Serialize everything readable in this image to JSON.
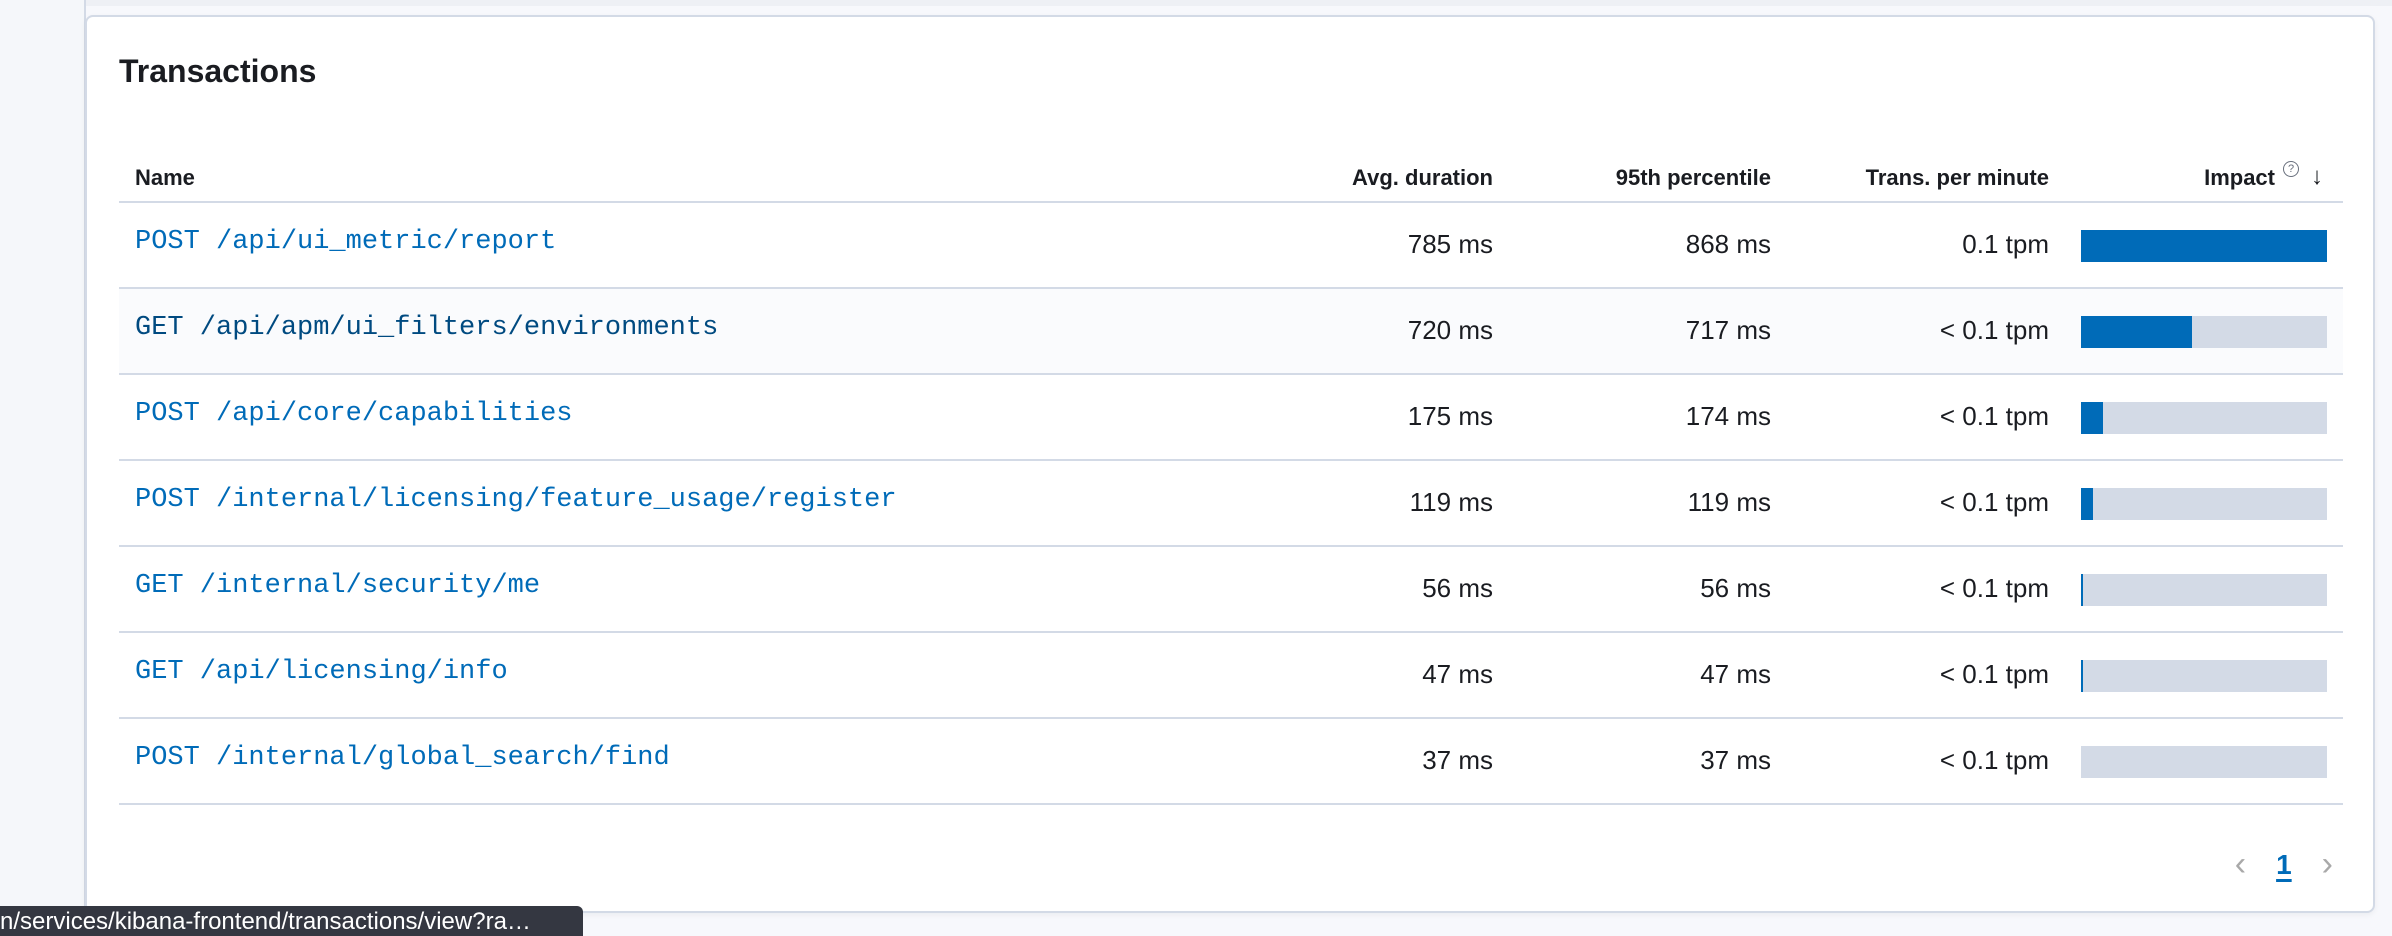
{
  "panel": {
    "title": "Transactions"
  },
  "table": {
    "columns": {
      "name": "Name",
      "avg": "Avg. duration",
      "p95": "95th percentile",
      "tpm": "Trans. per minute",
      "impact": "Impact"
    },
    "sort": {
      "column": "impact",
      "direction": "descending"
    },
    "rows": [
      {
        "name": "POST /api/ui_metric/report",
        "avg": "785 ms",
        "p95": "868 ms",
        "tpm": "0.1 tpm",
        "impact": 100
      },
      {
        "name": "GET /api/apm/ui_filters/environments",
        "avg": "720 ms",
        "p95": "717 ms",
        "tpm": "< 0.1 tpm",
        "impact": 45
      },
      {
        "name": "POST /api/core/capabilities",
        "avg": "175 ms",
        "p95": "174 ms",
        "tpm": "< 0.1 tpm",
        "impact": 9
      },
      {
        "name": "POST /internal/licensing/feature_usage/register",
        "avg": "119 ms",
        "p95": "119 ms",
        "tpm": "< 0.1 tpm",
        "impact": 5
      },
      {
        "name": "GET /internal/security/me",
        "avg": "56 ms",
        "p95": "56 ms",
        "tpm": "< 0.1 tpm",
        "impact": 1
      },
      {
        "name": "GET /api/licensing/info",
        "avg": "47 ms",
        "p95": "47 ms",
        "tpm": "< 0.1 tpm",
        "impact": 1
      },
      {
        "name": "POST /internal/global_search/find",
        "avg": "37 ms",
        "p95": "37 ms",
        "tpm": "< 0.1 tpm",
        "impact": 0
      }
    ]
  },
  "pagination": {
    "current": "1"
  },
  "status_tooltip": "n/services/kibana-frontend/transactions/view?ra…",
  "colors": {
    "accent": "#006bb8",
    "bar_track": "#d3dae6",
    "border": "#d3dae6"
  }
}
